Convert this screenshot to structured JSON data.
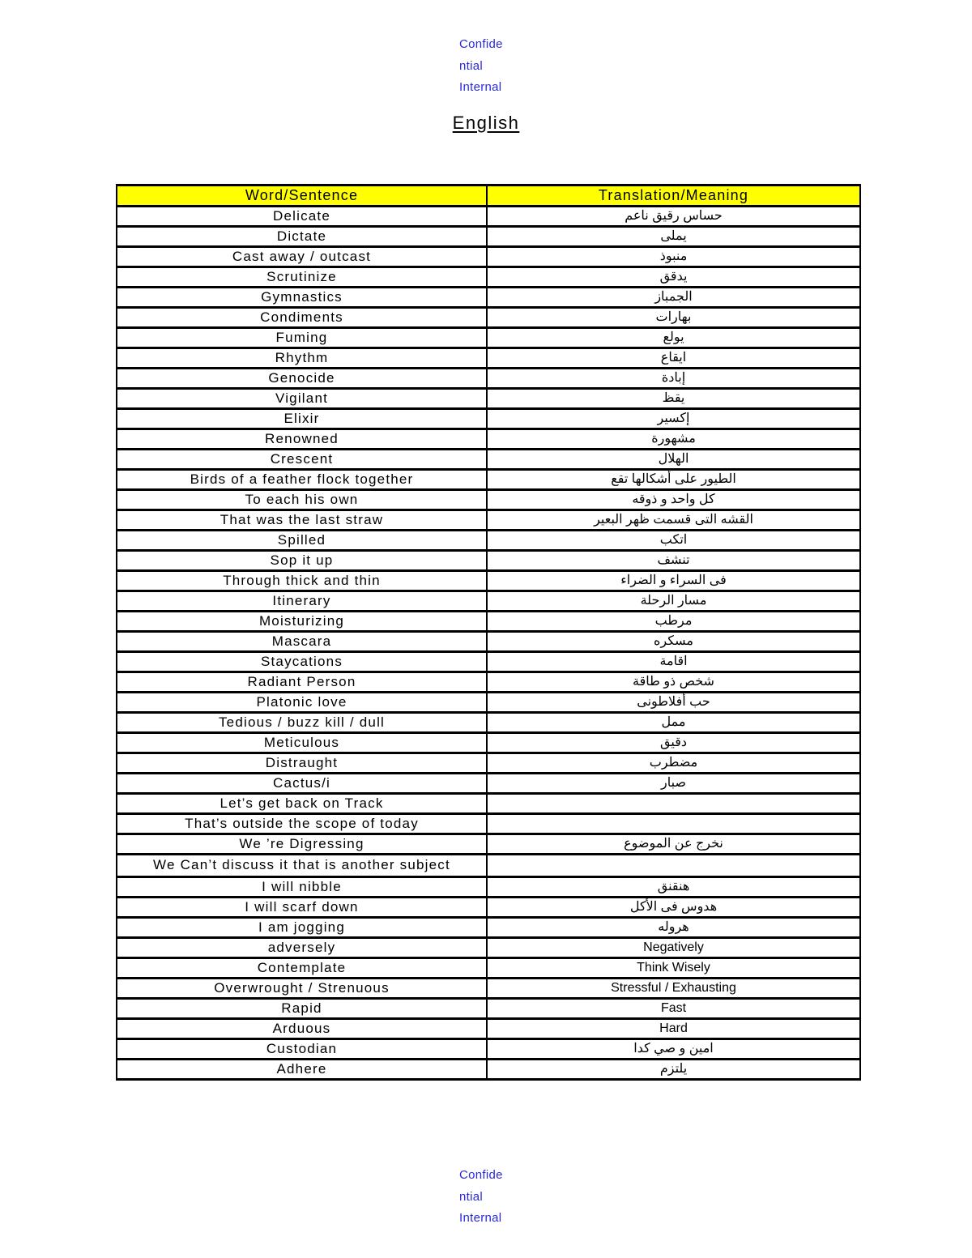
{
  "watermark": {
    "lines": [
      "Confide",
      "ntial",
      "Internal"
    ]
  },
  "title": "English",
  "colors": {
    "header_bg": "#FFFF00",
    "watermark_blue": "#2929DC",
    "border": "#000000",
    "page_bg": "#FFFFFF",
    "text": "#000000"
  },
  "table": {
    "headers": [
      "Word/Sentence",
      "Translation/Meaning"
    ],
    "rows": [
      {
        "en": "Delicate",
        "ar": "حساس رقيق ناعم"
      },
      {
        "en": "Dictate",
        "ar": "يملى"
      },
      {
        "en": "Cast away / outcast",
        "ar": "منبوذ"
      },
      {
        "en": "Scrutinize",
        "ar": "يدقق"
      },
      {
        "en": "Gymnastics",
        "ar": "الجمباز"
      },
      {
        "en": "Condiments",
        "ar": "بهارات"
      },
      {
        "en": "Fuming",
        "ar": "يولع"
      },
      {
        "en": "Rhythm",
        "ar": "ايقاع"
      },
      {
        "en": "Genocide",
        "ar": "إبادة"
      },
      {
        "en": "Vigilant",
        "ar": "يقظ"
      },
      {
        "en": "Elixir",
        "ar": "إكسير"
      },
      {
        "en": "Renowned",
        "ar": "مشهورة"
      },
      {
        "en": "Crescent",
        "ar": "الهلال"
      },
      {
        "en": "Birds of a feather flock together",
        "ar": "الطيور على أشكالها تقع"
      },
      {
        "en": "To each his own",
        "ar": "كل واحد و ذوقه"
      },
      {
        "en": "That was the last straw",
        "ar": "القشه التى قسمت ظهر البعير"
      },
      {
        "en": "Spilled",
        "ar": "اتكب"
      },
      {
        "en": "Sop it up",
        "ar": "تنشف"
      },
      {
        "en": "Through thick and thin",
        "ar": "فى السراء و الضراء"
      },
      {
        "en": "Itinerary",
        "ar": "مسار الرحلة"
      },
      {
        "en": "Moisturizing",
        "ar": "مرطب"
      },
      {
        "en": "Mascara",
        "ar": "مسكره"
      },
      {
        "en": "Staycations",
        "ar": "اقامة"
      },
      {
        "en": "Radiant Person",
        "ar": "شخص ذو طاقة"
      },
      {
        "en": "Platonic love",
        "ar": "حب أفلاطونى"
      },
      {
        "en": "Tedious / buzz kill / dull",
        "ar": "ممل"
      },
      {
        "en": "Meticulous",
        "ar": "دقيق"
      },
      {
        "en": "Distraught",
        "ar": "مضطرب"
      },
      {
        "en": "Cactus/i",
        "ar": "صبار"
      },
      {
        "en": "Let’s get back on Track",
        "ar": ""
      },
      {
        "en": "That’s outside the scope of today",
        "ar": ""
      },
      {
        "en": "We ’re Digressing",
        "ar": "نخرج عن الموضوع"
      },
      {
        "en": "We Can’t discuss it that is another subject",
        "ar": ""
      },
      {
        "en": "I will nibble",
        "ar": "هنقنق"
      },
      {
        "en": "I will scarf down",
        "ar": "هدوس فى الأكل"
      },
      {
        "en": "I am jogging",
        "ar": "هروله"
      },
      {
        "en": "adversely",
        "ar": "Negatively"
      },
      {
        "en": "Contemplate",
        "ar": "Think Wisely"
      },
      {
        "en": "Overwrought / Strenuous",
        "ar": "Stressful / Exhausting"
      },
      {
        "en": "Rapid",
        "ar": "Fast"
      },
      {
        "en": "Arduous",
        "ar": "Hard"
      },
      {
        "en": "Custodian",
        "ar": "امين و صي كدا"
      },
      {
        "en": "Adhere",
        "ar": "يلتزم"
      }
    ]
  }
}
